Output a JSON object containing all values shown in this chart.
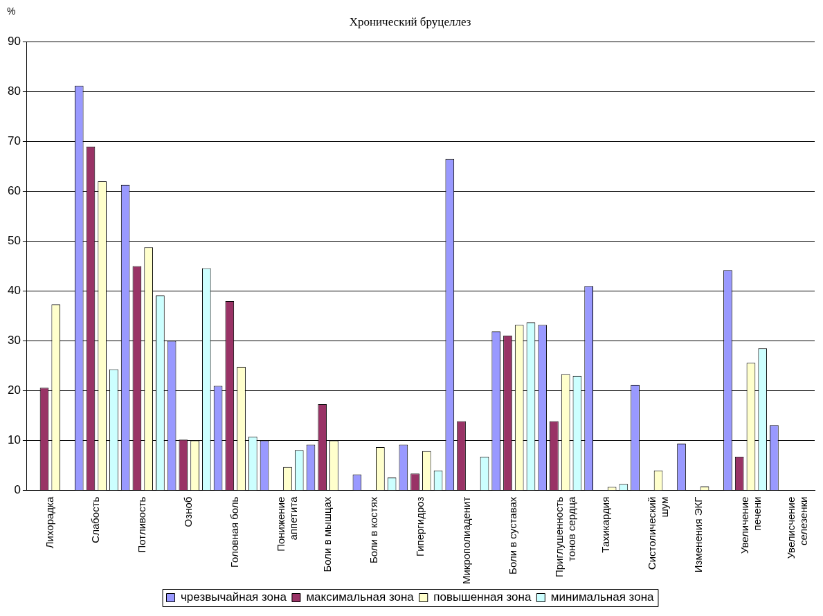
{
  "chart_data": {
    "type": "bar",
    "title": "Хронический бруцеллез",
    "ylabel": "%",
    "categories": [
      "Лихорадка",
      "Слабость",
      "Потливость",
      "Озноб",
      "Головная боль",
      "Понижение аппетита",
      "Боли в мышцах",
      "Боли в костях",
      "Гипергидроз",
      "Микрополиаденит",
      "Боли в суставах",
      "Приглушенность тонов сердца",
      "Тахикардия",
      "Систолический шум",
      "Изменения ЭКГ",
      "Увеличение печени",
      "Увелисчение селезенки"
    ],
    "series": [
      {
        "name": "чрезвычайная зона",
        "color": "#9999ff",
        "values": [
          0,
          81.2,
          61.3,
          30,
          21,
          10,
          9.2,
          3.2,
          9.2,
          66.5,
          31.9,
          33.2,
          41,
          21.2,
          9.4,
          44.2,
          13.1
        ]
      },
      {
        "name": "максимальная зона",
        "color": "#993366",
        "values": [
          20.6,
          69,
          45,
          10.2,
          38,
          0,
          17.3,
          0,
          3.4,
          13.9,
          31.1,
          13.9,
          0,
          0,
          0,
          6.8,
          0
        ]
      },
      {
        "name": "повышенная зона",
        "color": "#ffffcc",
        "values": [
          37.3,
          62,
          48.8,
          10,
          24.8,
          4.7,
          10,
          8.7,
          7.9,
          0,
          33.2,
          23.3,
          0.7,
          4,
          0.8,
          25.6,
          0
        ]
      },
      {
        "name": "минимальная зона",
        "color": "#ccffff",
        "values": [
          0,
          24.3,
          39.1,
          44.6,
          10.8,
          8.1,
          0,
          2.6,
          4,
          6.8,
          33.7,
          23,
          1.3,
          0,
          0,
          28.5,
          0
        ]
      }
    ],
    "ylim": [
      0,
      90
    ],
    "yticks": [
      0,
      10,
      20,
      30,
      40,
      50,
      60,
      70,
      80,
      90
    ],
    "grid": "y",
    "legend": "bottom"
  }
}
